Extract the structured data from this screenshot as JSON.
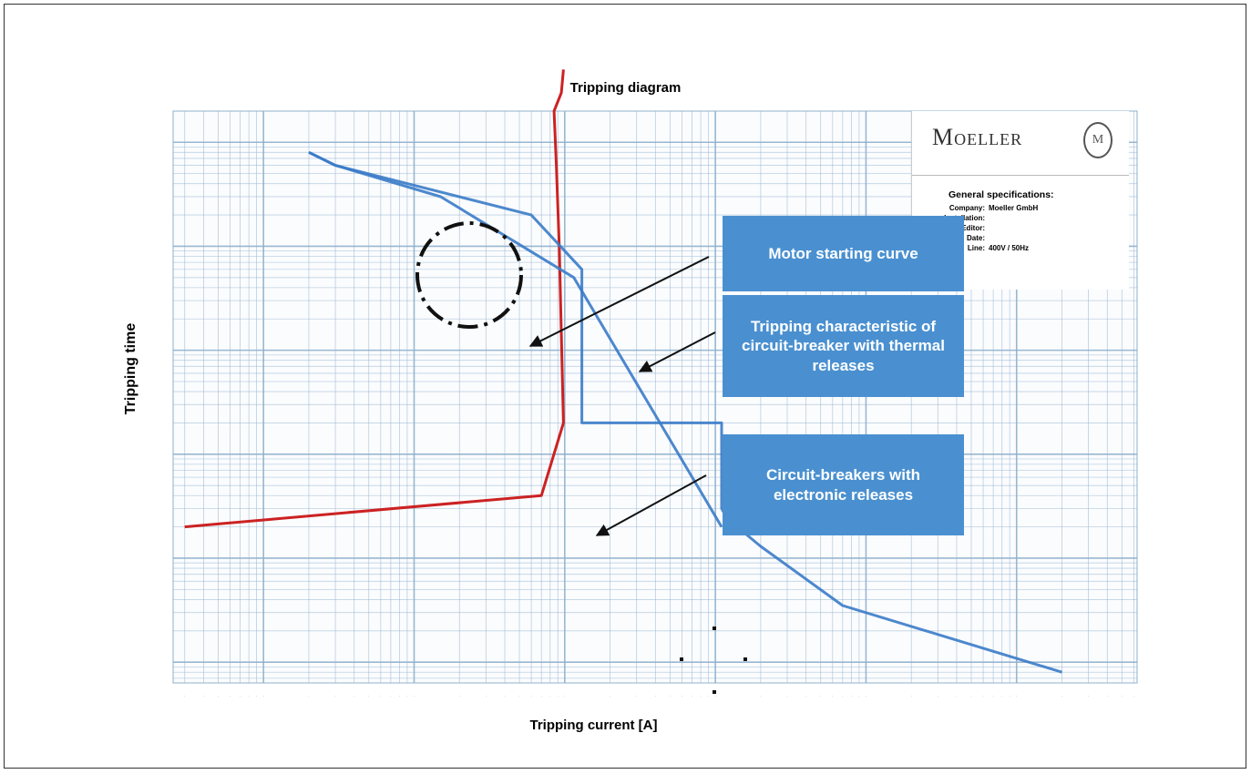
{
  "chart_data": {
    "type": "line",
    "title": "Tripping diagram",
    "xlabel": "Tripping current [A]",
    "ylabel": "Tripping time",
    "x_scale": "log",
    "y_scale": "log",
    "grid": true,
    "series": [
      {
        "name": "Motor starting curve",
        "color": "#cc2222",
        "points": [
          [
            0.3,
            2
          ],
          [
            70,
            4
          ],
          [
            98,
            20
          ],
          [
            92,
            1000
          ],
          [
            88,
            6000
          ],
          [
            85,
            20000
          ],
          [
            95,
            30000
          ],
          [
            98,
            50000
          ]
        ]
      },
      {
        "name": "Tripping characteristic of circuit-breaker with thermal releases",
        "color": "#3a7bc8",
        "points": [
          [
            2,
            8000
          ],
          [
            3,
            6000
          ],
          [
            15,
            3000
          ],
          [
            115,
            500
          ],
          [
            1100,
            2
          ]
        ]
      },
      {
        "name": "Circuit-breakers with electronic releases",
        "color": "#3a7bc8",
        "points": [
          [
            2,
            8000
          ],
          [
            3,
            6000
          ],
          [
            60,
            2000
          ],
          [
            130,
            600
          ],
          [
            130,
            20
          ],
          [
            1100,
            20
          ],
          [
            1100,
            3
          ],
          [
            1200,
            2.4
          ],
          [
            2000,
            1.3
          ],
          [
            7000,
            0.35
          ],
          [
            200000,
            0.08
          ]
        ]
      }
    ],
    "callouts": [
      "Motor starting curve",
      "Tripping characteristic of circuit-breaker with thermal releases",
      "Circuit-breakers with electronic releases"
    ]
  },
  "logo": {
    "text": "Moeller",
    "emblem": "M"
  },
  "specs": {
    "title": "General specifications:",
    "rows": [
      {
        "label": "Company:",
        "value": "Moeller GmbH"
      },
      {
        "label": "Installation:",
        "value": ""
      },
      {
        "label": "Editor:",
        "value": ""
      },
      {
        "label": "Date:",
        "value": ""
      },
      {
        "label": "Line:",
        "value": "400V / 50Hz"
      }
    ]
  },
  "callouts": {
    "motor": "Motor starting curve",
    "thermal": "Tripping characteristic of circuit-breaker with thermal releases",
    "electronic": "Circuit-breakers with electronic releases"
  },
  "colors": {
    "motor": "#cc2222",
    "breaker": "#3a7bc8",
    "callout": "#4a90d0",
    "grid": "#8fb0cc"
  }
}
